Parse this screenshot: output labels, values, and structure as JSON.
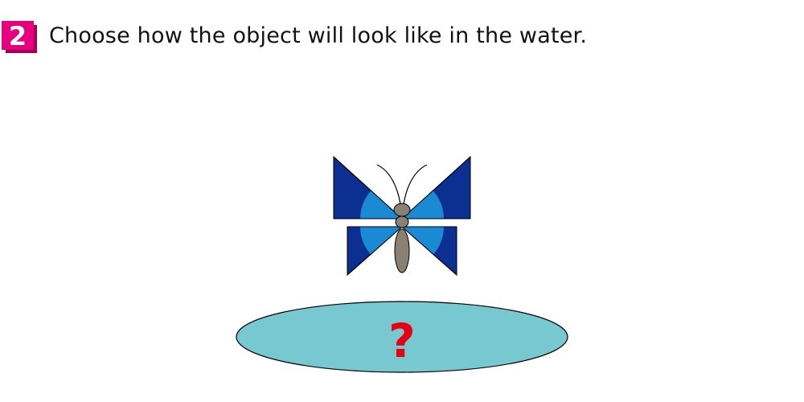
{
  "question": {
    "number": "2",
    "prompt": "Choose how the object will look like in the water."
  },
  "scene": {
    "object": "butterfly",
    "mystery_mark": "?"
  },
  "colors": {
    "badge_face": "#e4007f",
    "badge_shadow": "#a3005a",
    "wing_dark": "#0b3092",
    "wing_light": "#1a8ad4",
    "body": "#8b8173",
    "water": "#77c8d0",
    "question_mark": "#e60012"
  }
}
